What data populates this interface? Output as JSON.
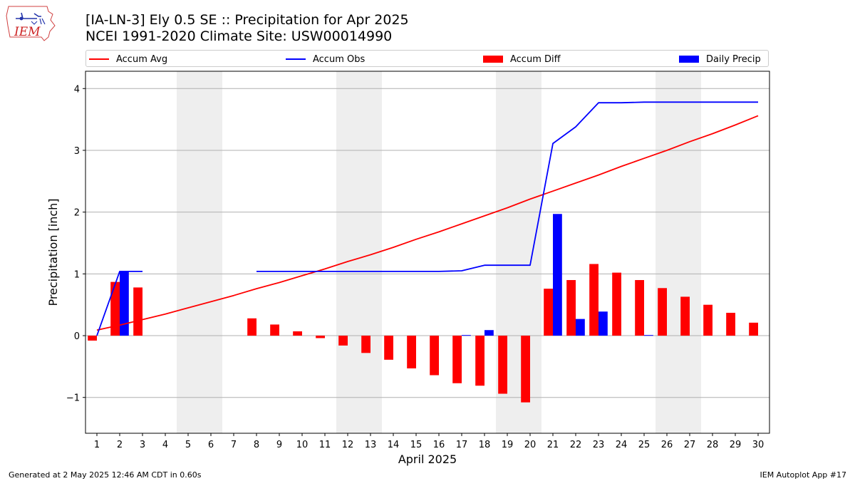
{
  "header": {
    "title_line1": "[IA-LN-3] Ely 0.5 SE :: Precipitation for Apr 2025",
    "title_line2": "NCEI 1991-2020 Climate Site: USW00014990",
    "logo_text": "IEM"
  },
  "footer": {
    "left": "Generated at 2 May 2025 12:46 AM CDT in 0.60s",
    "right": "IEM Autoplot App #17"
  },
  "legend": {
    "items": [
      {
        "label": "Accum Avg",
        "kind": "line",
        "color": "#ff0000"
      },
      {
        "label": "Accum Obs",
        "kind": "line",
        "color": "#0000ff"
      },
      {
        "label": "Accum Diff",
        "kind": "box",
        "color": "#ff0000"
      },
      {
        "label": "Daily Precip",
        "kind": "box",
        "color": "#0000ff"
      }
    ]
  },
  "chart_data": {
    "type": "bar",
    "xlabel": "April 2025",
    "ylabel": "Precipitation [inch]",
    "xlim": [
      0.5,
      30.5
    ],
    "ylim": [
      -1.58,
      4.28
    ],
    "yticks": [
      -1,
      0,
      1,
      2,
      3,
      4
    ],
    "ytick_labels": [
      "−1",
      "0",
      "1",
      "2",
      "3",
      "4"
    ],
    "grid": "horizontal",
    "legend_position": "top",
    "weekend_shading_color": "#eeeeee",
    "weekend_spans": [
      [
        4.5,
        6.5
      ],
      [
        11.5,
        13.5
      ],
      [
        18.5,
        20.5
      ],
      [
        25.5,
        27.5
      ]
    ],
    "days": [
      1,
      2,
      3,
      4,
      5,
      6,
      7,
      8,
      9,
      10,
      11,
      12,
      13,
      14,
      15,
      16,
      17,
      18,
      19,
      20,
      21,
      22,
      23,
      24,
      25,
      26,
      27,
      28,
      29,
      30
    ],
    "day_labels": [
      "1",
      "2",
      "3",
      "4",
      "5",
      "6",
      "7",
      "8",
      "9",
      "10",
      "11",
      "12",
      "13",
      "14",
      "15",
      "16",
      "17",
      "18",
      "19",
      "20",
      "21",
      "22",
      "23",
      "24",
      "25",
      "26",
      "27",
      "28",
      "29",
      "30"
    ],
    "series": [
      {
        "name": "Accum Avg",
        "type": "line",
        "color": "#ff0000",
        "x": [
          1,
          2,
          3,
          4,
          5,
          6,
          7,
          8,
          9,
          10,
          11,
          12,
          13,
          14,
          15,
          16,
          17,
          18,
          19,
          20,
          21,
          22,
          23,
          24,
          25,
          26,
          27,
          28,
          29,
          30
        ],
        "values": [
          0.09,
          0.17,
          0.26,
          0.35,
          0.45,
          0.55,
          0.65,
          0.76,
          0.86,
          0.97,
          1.08,
          1.2,
          1.31,
          1.43,
          1.56,
          1.68,
          1.81,
          1.94,
          2.07,
          2.21,
          2.34,
          2.47,
          2.6,
          2.74,
          2.87,
          3.0,
          3.14,
          3.27,
          3.41,
          3.56
        ]
      },
      {
        "name": "Accum Obs",
        "type": "line",
        "color": "#0000ff",
        "segments": [
          {
            "x": [
              1,
              2,
              3
            ],
            "values": [
              0.0,
              1.04,
              1.04
            ]
          },
          {
            "x": [
              8,
              9,
              10,
              11,
              12,
              13,
              14,
              15,
              16,
              17,
              18,
              19,
              20,
              21,
              22,
              23,
              24,
              25,
              26,
              27,
              28,
              29,
              30
            ],
            "values": [
              1.04,
              1.04,
              1.04,
              1.04,
              1.04,
              1.04,
              1.04,
              1.04,
              1.04,
              1.05,
              1.14,
              1.14,
              1.14,
              3.11,
              3.38,
              3.77,
              3.77,
              3.78,
              3.78,
              3.78,
              3.78,
              3.78,
              3.78
            ]
          }
        ]
      },
      {
        "name": "Accum Diff",
        "type": "bar",
        "color": "#ff0000",
        "offset": -0.2,
        "x": [
          1,
          2,
          3,
          8,
          9,
          10,
          11,
          12,
          13,
          14,
          15,
          16,
          17,
          18,
          19,
          20,
          21,
          22,
          23,
          24,
          25,
          26,
          27,
          28,
          29,
          30
        ],
        "values": [
          -0.08,
          0.87,
          0.78,
          0.28,
          0.18,
          0.07,
          -0.04,
          -0.16,
          -0.28,
          -0.39,
          -0.53,
          -0.64,
          -0.77,
          -0.81,
          -0.94,
          -1.08,
          0.76,
          0.9,
          1.16,
          1.02,
          0.9,
          0.77,
          0.63,
          0.5,
          0.37,
          0.21
        ]
      },
      {
        "name": "Daily Precip",
        "type": "bar",
        "color": "#0000ff",
        "offset": 0.2,
        "x": [
          2,
          17,
          18,
          21,
          22,
          23,
          25
        ],
        "values": [
          1.04,
          0.01,
          0.09,
          1.97,
          0.27,
          0.39,
          0.01
        ]
      }
    ]
  }
}
